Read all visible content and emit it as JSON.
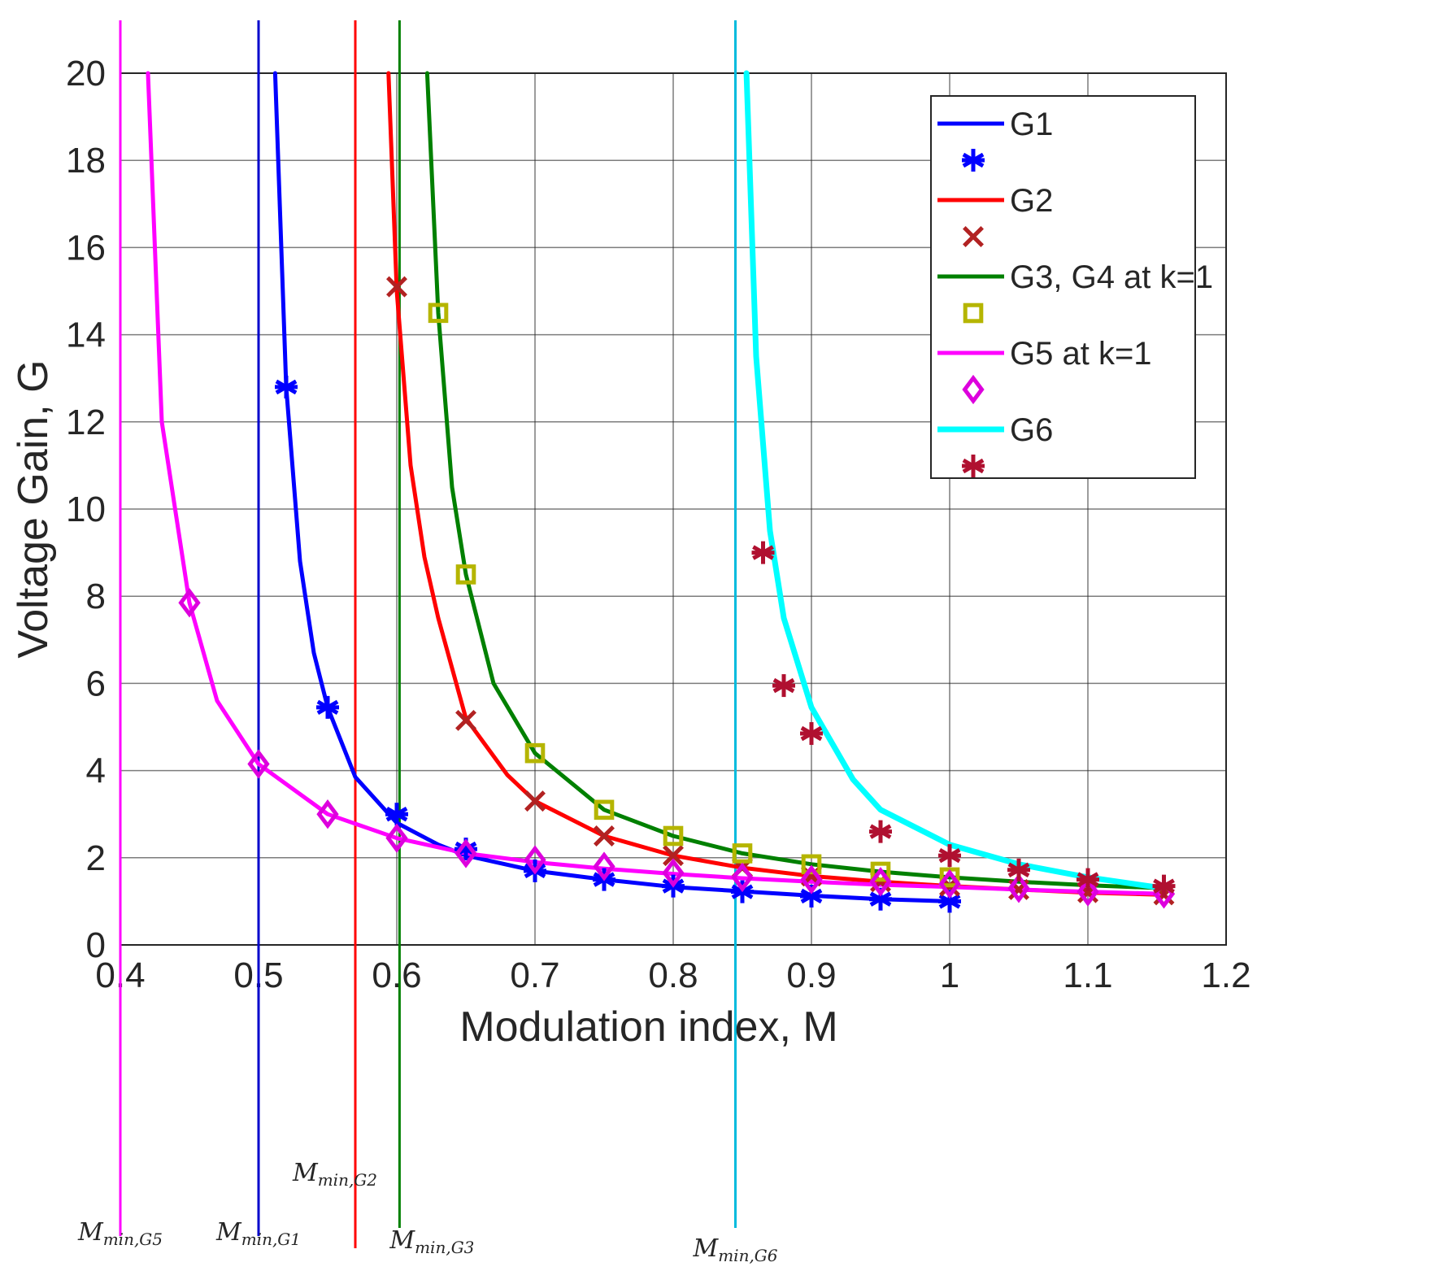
{
  "chart_data": {
    "type": "line",
    "title": "",
    "xlabel": "Modulation index, M",
    "ylabel": "Voltage Gain, G",
    "xlim": [
      0.4,
      1.2
    ],
    "ylim": [
      0,
      20
    ],
    "xticks": [
      0.4,
      0.5,
      0.6,
      0.7,
      0.8,
      0.9,
      1,
      1.1,
      1.2
    ],
    "yticks": [
      0,
      2,
      4,
      6,
      8,
      10,
      12,
      14,
      16,
      18,
      20
    ],
    "x_tick_labels": [
      "0.4",
      "0.5",
      "0.6",
      "0.7",
      "0.8",
      "0.9",
      "1",
      "1.1",
      "1.2"
    ],
    "y_tick_labels": [
      "0",
      "2",
      "4",
      "6",
      "8",
      "10",
      "12",
      "14",
      "16",
      "18",
      "20"
    ],
    "grid": true,
    "legend_position": "top-right",
    "series": [
      {
        "name": "G1",
        "color": "#0000ff",
        "marker": "asterisk",
        "marker_color": "#0000ff",
        "line": [
          [
            0.512,
            20
          ],
          [
            0.52,
            12.8
          ],
          [
            0.53,
            8.8
          ],
          [
            0.54,
            6.7
          ],
          [
            0.55,
            5.45
          ],
          [
            0.57,
            3.85
          ],
          [
            0.6,
            2.8
          ],
          [
            0.63,
            2.3
          ],
          [
            0.65,
            2.05
          ],
          [
            0.7,
            1.7
          ],
          [
            0.75,
            1.5
          ],
          [
            0.8,
            1.33
          ],
          [
            0.85,
            1.23
          ],
          [
            0.9,
            1.13
          ],
          [
            0.95,
            1.05
          ],
          [
            1.0,
            1.0
          ]
        ],
        "markers": [
          [
            0.52,
            12.8
          ],
          [
            0.55,
            5.45
          ],
          [
            0.6,
            3.0
          ],
          [
            0.65,
            2.2
          ],
          [
            0.7,
            1.7
          ],
          [
            0.75,
            1.5
          ],
          [
            0.8,
            1.35
          ],
          [
            0.85,
            1.22
          ],
          [
            0.9,
            1.12
          ],
          [
            0.95,
            1.05
          ],
          [
            1.0,
            1.0
          ]
        ]
      },
      {
        "name": "G2",
        "color": "#ff0000",
        "marker": "x",
        "marker_color": "#b22222",
        "line": [
          [
            0.594,
            20
          ],
          [
            0.6,
            15.0
          ],
          [
            0.61,
            11.0
          ],
          [
            0.62,
            8.9
          ],
          [
            0.63,
            7.5
          ],
          [
            0.65,
            5.2
          ],
          [
            0.68,
            3.9
          ],
          [
            0.7,
            3.3
          ],
          [
            0.75,
            2.5
          ],
          [
            0.8,
            2.05
          ],
          [
            0.85,
            1.77
          ],
          [
            0.9,
            1.58
          ],
          [
            0.95,
            1.45
          ],
          [
            1.0,
            1.35
          ],
          [
            1.05,
            1.27
          ],
          [
            1.1,
            1.2
          ],
          [
            1.155,
            1.15
          ]
        ],
        "markers": [
          [
            0.6,
            15.1
          ],
          [
            0.65,
            5.15
          ],
          [
            0.7,
            3.3
          ],
          [
            0.75,
            2.5
          ],
          [
            0.8,
            2.05
          ],
          [
            0.85,
            1.77
          ],
          [
            0.9,
            1.58
          ],
          [
            0.95,
            1.45
          ],
          [
            1.0,
            1.35
          ],
          [
            1.05,
            1.27
          ],
          [
            1.1,
            1.2
          ],
          [
            1.155,
            1.15
          ]
        ]
      },
      {
        "name": "G3, G4 at k=1",
        "color": "#008000",
        "marker": "square",
        "marker_color": "#b5b500",
        "line": [
          [
            0.622,
            20
          ],
          [
            0.63,
            14.5
          ],
          [
            0.64,
            10.5
          ],
          [
            0.65,
            8.5
          ],
          [
            0.67,
            6.0
          ],
          [
            0.7,
            4.4
          ],
          [
            0.75,
            3.1
          ],
          [
            0.8,
            2.5
          ],
          [
            0.85,
            2.1
          ],
          [
            0.9,
            1.85
          ],
          [
            0.95,
            1.68
          ],
          [
            1.0,
            1.55
          ],
          [
            1.05,
            1.45
          ],
          [
            1.1,
            1.37
          ],
          [
            1.155,
            1.3
          ]
        ],
        "markers": [
          [
            0.63,
            14.5
          ],
          [
            0.65,
            8.5
          ],
          [
            0.7,
            4.4
          ],
          [
            0.75,
            3.1
          ],
          [
            0.8,
            2.5
          ],
          [
            0.85,
            2.1
          ],
          [
            0.9,
            1.85
          ],
          [
            0.95,
            1.68
          ],
          [
            1.0,
            1.55
          ]
        ]
      },
      {
        "name": "G5 at k=1",
        "color": "#ff00ff",
        "marker": "diamond",
        "marker_color": "#dd00dd",
        "line": [
          [
            0.42,
            20
          ],
          [
            0.43,
            12.0
          ],
          [
            0.45,
            7.85
          ],
          [
            0.47,
            5.6
          ],
          [
            0.5,
            4.15
          ],
          [
            0.55,
            3.0
          ],
          [
            0.6,
            2.45
          ],
          [
            0.65,
            2.1
          ],
          [
            0.7,
            1.9
          ],
          [
            0.75,
            1.75
          ],
          [
            0.8,
            1.63
          ],
          [
            0.85,
            1.53
          ],
          [
            0.9,
            1.45
          ],
          [
            0.95,
            1.38
          ],
          [
            1.0,
            1.33
          ],
          [
            1.05,
            1.27
          ],
          [
            1.1,
            1.22
          ],
          [
            1.155,
            1.17
          ]
        ],
        "markers": [
          [
            0.45,
            7.85
          ],
          [
            0.5,
            4.15
          ],
          [
            0.55,
            3.0
          ],
          [
            0.6,
            2.45
          ],
          [
            0.65,
            2.1
          ],
          [
            0.7,
            1.95
          ],
          [
            0.75,
            1.8
          ],
          [
            0.8,
            1.65
          ],
          [
            0.85,
            1.55
          ],
          [
            0.9,
            1.5
          ],
          [
            0.95,
            1.45
          ],
          [
            1.0,
            1.4
          ],
          [
            1.05,
            1.3
          ],
          [
            1.1,
            1.22
          ],
          [
            1.155,
            1.17
          ]
        ]
      },
      {
        "name": "G6",
        "color": "#00ffff",
        "marker": "asterisk",
        "marker_color": "#b01030",
        "line": [
          [
            0.853,
            20
          ],
          [
            0.86,
            13.5
          ],
          [
            0.87,
            9.5
          ],
          [
            0.88,
            7.5
          ],
          [
            0.9,
            5.45
          ],
          [
            0.93,
            3.8
          ],
          [
            0.95,
            3.1
          ],
          [
            1.0,
            2.3
          ],
          [
            1.05,
            1.85
          ],
          [
            1.1,
            1.55
          ],
          [
            1.155,
            1.3
          ]
        ],
        "markers": [
          [
            0.865,
            9.0
          ],
          [
            0.88,
            5.95
          ],
          [
            0.9,
            4.85
          ],
          [
            0.95,
            2.6
          ],
          [
            1.0,
            2.05
          ],
          [
            1.05,
            1.72
          ],
          [
            1.1,
            1.5
          ],
          [
            1.155,
            1.35
          ]
        ]
      }
    ],
    "vertical_lines": [
      {
        "x": 0.4,
        "color": "#ff00ff",
        "label_main": "M",
        "label_sub": "min,G5"
      },
      {
        "x": 0.5,
        "color": "#0000cc",
        "label_main": "M",
        "label_sub": "min,G1"
      },
      {
        "x": 0.57,
        "color": "#ff0000",
        "label_main": "M",
        "label_sub": "min,G2"
      },
      {
        "x": 0.602,
        "color": "#008000",
        "label_main": "M",
        "label_sub": "min,G3"
      },
      {
        "x": 0.845,
        "color": "#00bbdd",
        "label_main": "M",
        "label_sub": "min,G6"
      }
    ]
  }
}
